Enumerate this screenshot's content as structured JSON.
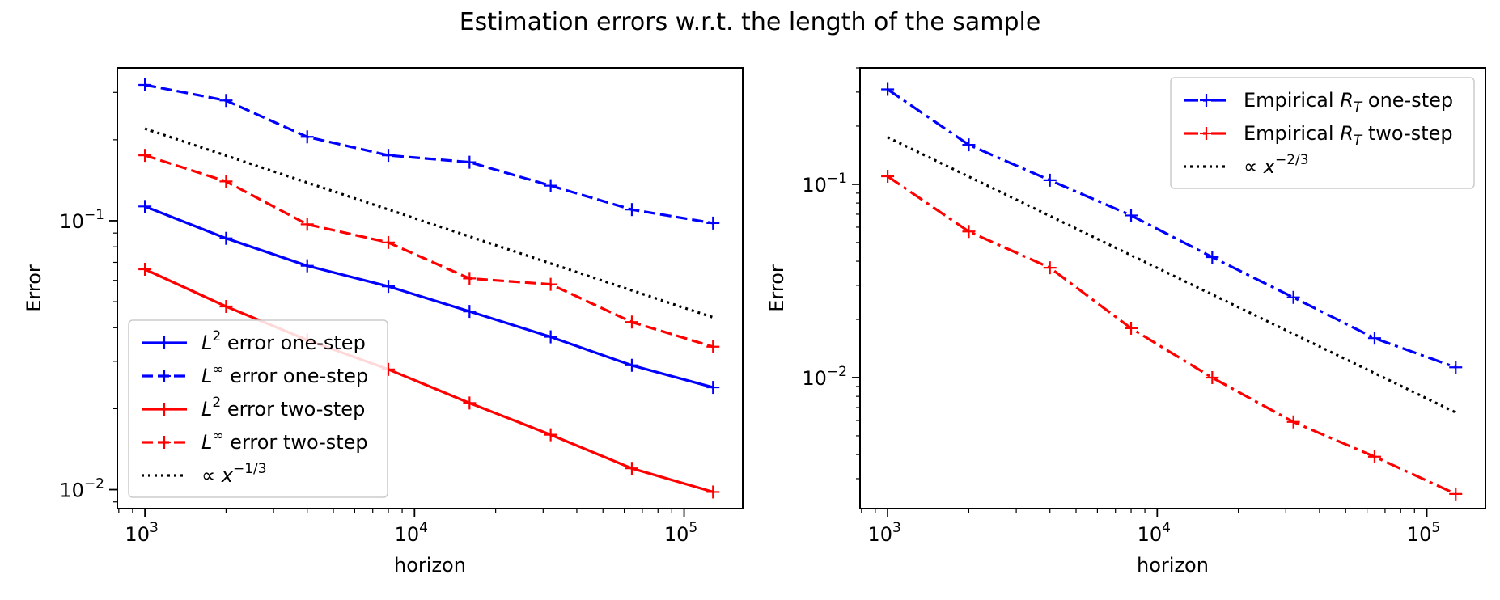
{
  "figure_title": "Estimation errors w.r.t. the length of the sample",
  "chart_data": [
    {
      "type": "line",
      "xscale": "log",
      "yscale": "log",
      "xlabel": "horizon",
      "ylabel": "Error",
      "xlim": [
        790,
        165000
      ],
      "ylim": [
        0.0085,
        0.37
      ],
      "x_ticks": [
        {
          "value": 1000,
          "base": "10",
          "exp": "3"
        },
        {
          "value": 10000,
          "base": "10",
          "exp": "4"
        },
        {
          "value": 100000,
          "base": "10",
          "exp": "5"
        }
      ],
      "y_ticks": [
        {
          "value": 0.01,
          "base": "10",
          "exp": "−2"
        },
        {
          "value": 0.1,
          "base": "10",
          "exp": "−1"
        }
      ],
      "legend_position": "lower-left",
      "series": [
        {
          "name": "L² error one-step",
          "sym": "L",
          "sup": "2",
          "rest": " error one-step",
          "color": "#0000ff",
          "dash": "solid",
          "marker": true,
          "x": [
            1000,
            2000,
            4000,
            8000,
            16000,
            32000,
            64000,
            128000
          ],
          "y": [
            0.113,
            0.086,
            0.068,
            0.057,
            0.046,
            0.037,
            0.029,
            0.024
          ]
        },
        {
          "name": "L∞ error one-step",
          "sym": "L",
          "sup": "∞",
          "rest": " error one-step",
          "color": "#0000ff",
          "dash": "dashed",
          "marker": true,
          "x": [
            1000,
            2000,
            4000,
            8000,
            16000,
            32000,
            64000,
            128000
          ],
          "y": [
            0.32,
            0.28,
            0.205,
            0.175,
            0.165,
            0.135,
            0.11,
            0.098
          ]
        },
        {
          "name": "L² error two-step",
          "sym": "L",
          "sup": "2",
          "rest": " error two-step",
          "color": "#ff0000",
          "dash": "solid",
          "marker": true,
          "x": [
            1000,
            2000,
            4000,
            8000,
            16000,
            32000,
            64000,
            128000
          ],
          "y": [
            0.066,
            0.048,
            0.036,
            0.028,
            0.021,
            0.016,
            0.012,
            0.0098
          ]
        },
        {
          "name": "L∞ error two-step",
          "sym": "L",
          "sup": "∞",
          "rest": " error two-step",
          "color": "#ff0000",
          "dash": "dashed",
          "marker": true,
          "x": [
            1000,
            2000,
            4000,
            8000,
            16000,
            32000,
            64000,
            128000
          ],
          "y": [
            0.175,
            0.14,
            0.097,
            0.083,
            0.061,
            0.058,
            0.042,
            0.034
          ]
        },
        {
          "name": "∝ x^(−1/3)",
          "sym": "∝ ",
          "symx": "x",
          "sup": "−1/3",
          "rest": "",
          "color": "#000000",
          "dash": "dotted",
          "marker": false,
          "x": [
            1000,
            128000
          ],
          "y": [
            0.22,
            0.0437
          ]
        }
      ]
    },
    {
      "type": "line",
      "xscale": "log",
      "yscale": "log",
      "xlabel": "horizon",
      "ylabel": "Error",
      "xlim": [
        790,
        165000
      ],
      "ylim": [
        0.0021,
        0.4
      ],
      "x_ticks": [
        {
          "value": 1000,
          "base": "10",
          "exp": "3"
        },
        {
          "value": 10000,
          "base": "10",
          "exp": "4"
        },
        {
          "value": 100000,
          "base": "10",
          "exp": "5"
        }
      ],
      "y_ticks": [
        {
          "value": 0.01,
          "base": "10",
          "exp": "−2"
        },
        {
          "value": 0.1,
          "base": "10",
          "exp": "−1"
        }
      ],
      "legend_position": "upper-right",
      "series": [
        {
          "name": "Empirical R_T one-step",
          "pre": "Empirical ",
          "sym": "R",
          "sub": "T",
          "rest": " one-step",
          "color": "#0000ff",
          "dash": "dashdot",
          "marker": true,
          "x": [
            1000,
            2000,
            4000,
            8000,
            16000,
            32000,
            64000,
            128000
          ],
          "y": [
            0.31,
            0.16,
            0.105,
            0.069,
            0.042,
            0.026,
            0.016,
            0.0113
          ]
        },
        {
          "name": "Empirical R_T two-step",
          "pre": "Empirical ",
          "sym": "R",
          "sub": "T",
          "rest": " two-step",
          "color": "#ff0000",
          "dash": "dashdot",
          "marker": true,
          "x": [
            1000,
            2000,
            4000,
            8000,
            16000,
            32000,
            64000,
            128000
          ],
          "y": [
            0.11,
            0.057,
            0.037,
            0.018,
            0.01,
            0.0059,
            0.0039,
            0.0025
          ]
        },
        {
          "name": "∝ x^(−2/3)",
          "sym": "∝ ",
          "symx": "x",
          "sup": "−2/3",
          "rest": "",
          "color": "#000000",
          "dash": "dotted",
          "marker": false,
          "x": [
            1000,
            128000
          ],
          "y": [
            0.175,
            0.0066
          ]
        }
      ]
    }
  ]
}
